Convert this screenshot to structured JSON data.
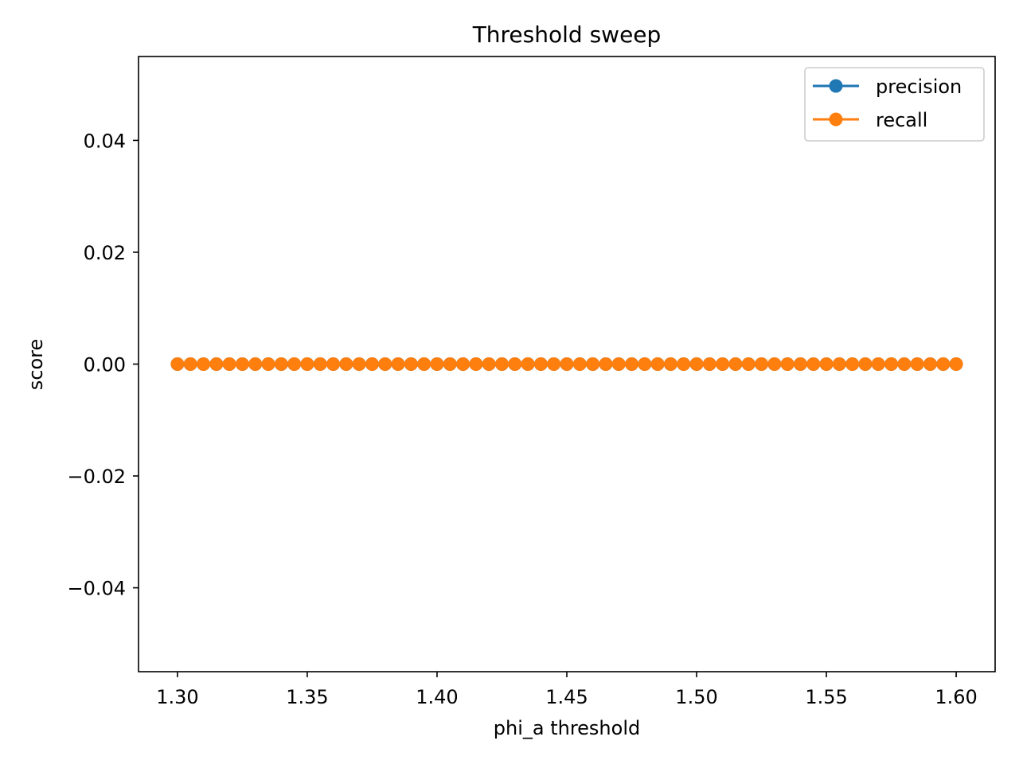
{
  "chart_data": {
    "type": "line",
    "title": "Threshold sweep",
    "xlabel": "phi_a threshold",
    "ylabel": "score",
    "xlim": [
      1.285,
      1.615
    ],
    "ylim": [
      -0.055,
      0.055
    ],
    "x_ticks": [
      1.3,
      1.35,
      1.4,
      1.45,
      1.5,
      1.55,
      1.6
    ],
    "x_tick_labels": [
      "1.30",
      "1.35",
      "1.40",
      "1.45",
      "1.50",
      "1.55",
      "1.60"
    ],
    "y_ticks": [
      -0.04,
      -0.02,
      0.0,
      0.02,
      0.04
    ],
    "y_tick_labels": [
      "−0.04",
      "−0.02",
      "0.00",
      "0.02",
      "0.04"
    ],
    "grid": false,
    "legend_position": "upper right",
    "marker": "circle",
    "x": [
      1.3,
      1.305,
      1.31,
      1.315,
      1.32,
      1.325,
      1.33,
      1.335,
      1.34,
      1.345,
      1.35,
      1.355,
      1.36,
      1.365,
      1.37,
      1.375,
      1.38,
      1.385,
      1.39,
      1.395,
      1.4,
      1.405,
      1.41,
      1.415,
      1.42,
      1.425,
      1.43,
      1.435,
      1.44,
      1.445,
      1.45,
      1.455,
      1.46,
      1.465,
      1.47,
      1.475,
      1.48,
      1.485,
      1.49,
      1.495,
      1.5,
      1.505,
      1.51,
      1.515,
      1.52,
      1.525,
      1.53,
      1.535,
      1.54,
      1.545,
      1.55,
      1.555,
      1.56,
      1.565,
      1.57,
      1.575,
      1.58,
      1.585,
      1.59,
      1.595,
      1.6
    ],
    "series": [
      {
        "name": "precision",
        "color": "#1f77b4",
        "values": [
          0,
          0,
          0,
          0,
          0,
          0,
          0,
          0,
          0,
          0,
          0,
          0,
          0,
          0,
          0,
          0,
          0,
          0,
          0,
          0,
          0,
          0,
          0,
          0,
          0,
          0,
          0,
          0,
          0,
          0,
          0,
          0,
          0,
          0,
          0,
          0,
          0,
          0,
          0,
          0,
          0,
          0,
          0,
          0,
          0,
          0,
          0,
          0,
          0,
          0,
          0,
          0,
          0,
          0,
          0,
          0,
          0,
          0,
          0,
          0,
          0
        ]
      },
      {
        "name": "recall",
        "color": "#ff7f0e",
        "values": [
          0,
          0,
          0,
          0,
          0,
          0,
          0,
          0,
          0,
          0,
          0,
          0,
          0,
          0,
          0,
          0,
          0,
          0,
          0,
          0,
          0,
          0,
          0,
          0,
          0,
          0,
          0,
          0,
          0,
          0,
          0,
          0,
          0,
          0,
          0,
          0,
          0,
          0,
          0,
          0,
          0,
          0,
          0,
          0,
          0,
          0,
          0,
          0,
          0,
          0,
          0,
          0,
          0,
          0,
          0,
          0,
          0,
          0,
          0,
          0,
          0
        ]
      }
    ]
  }
}
